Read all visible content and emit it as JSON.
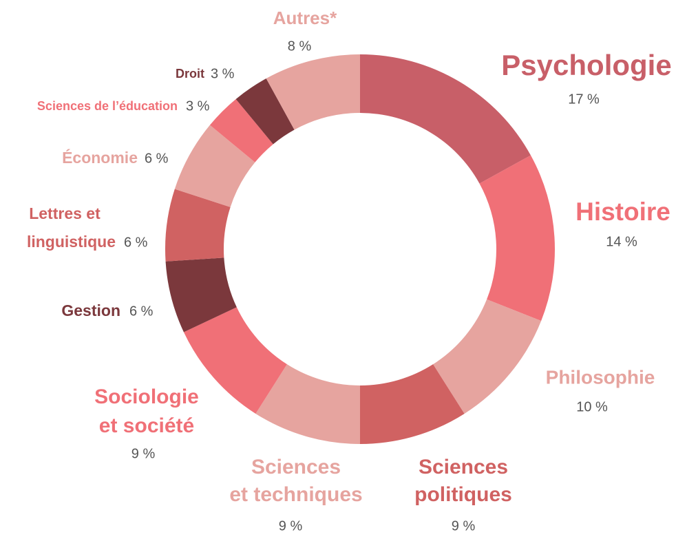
{
  "chart_data": {
    "type": "donut",
    "categories": [
      [
        "Psychologie"
      ],
      [
        "Histoire"
      ],
      [
        "Philosophie"
      ],
      [
        "Sciences",
        "politiques"
      ],
      [
        "Sciences",
        "et techniques"
      ],
      [
        "Sociologie",
        "et société"
      ],
      [
        "Gestion"
      ],
      [
        "Lettres et",
        "linguistique"
      ],
      [
        "Économie"
      ],
      [
        "Sciences de l’éducation"
      ],
      [
        "Droit"
      ],
      [
        "Autres*"
      ]
    ],
    "values": [
      17,
      14,
      10,
      9,
      9,
      9,
      6,
      6,
      6,
      3,
      3,
      8
    ],
    "value_labels": [
      "17 %",
      "14 %",
      "10 %",
      "9 %",
      "9 %",
      "9 %",
      "6 %",
      "6 %",
      "6 %",
      "3 %",
      "3 %",
      "8 %"
    ],
    "colors": [
      "#c85f68",
      "#f07077",
      "#e6a49f",
      "#d06262",
      "#e6a49f",
      "#f07077",
      "#7b383c",
      "#d06262",
      "#e6a49f",
      "#f07077",
      "#7b383c",
      "#e6a49f"
    ]
  }
}
